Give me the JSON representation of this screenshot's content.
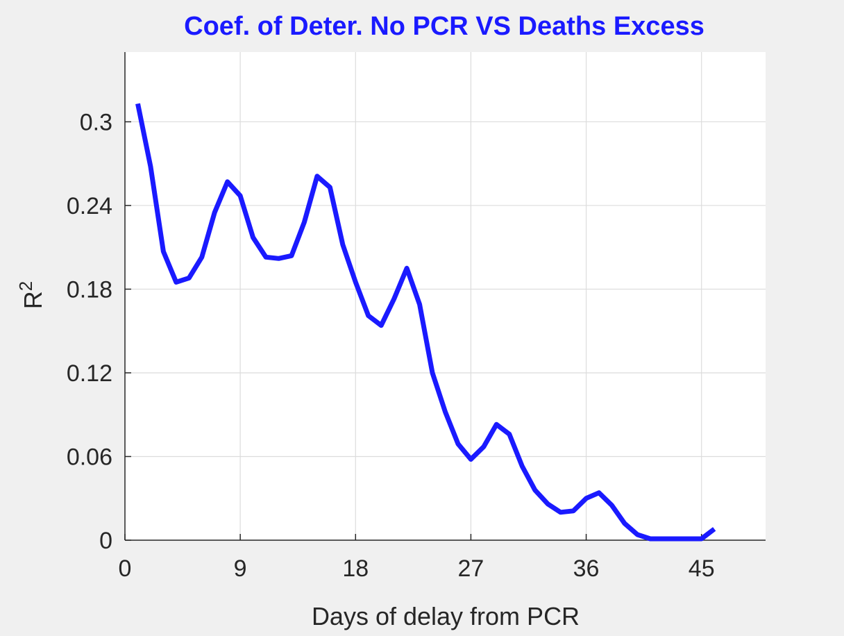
{
  "chart_data": {
    "type": "line",
    "title": "Coef. of Deter. No PCR VS Deaths Excess",
    "xlabel": "Days of delay from PCR",
    "ylabel_base": "R",
    "ylabel_sup": "2",
    "xlim": [
      0,
      50
    ],
    "ylim": [
      0,
      0.35
    ],
    "xticks": [
      0,
      9,
      18,
      27,
      36,
      45
    ],
    "xtick_labels": [
      "0",
      "9",
      "18",
      "27",
      "36",
      "45"
    ],
    "yticks": [
      0,
      0.06,
      0.12,
      0.18,
      0.24,
      0.3
    ],
    "ytick_labels": [
      "0",
      "0.06",
      "0.12",
      "0.18",
      "0.24",
      "0.3"
    ],
    "grid": true,
    "colors": {
      "line": "#1a1aff",
      "title": "#1a1aff",
      "background": "#f0f0f0",
      "plot_bg": "#ffffff"
    },
    "series": [
      {
        "x": [
          1,
          2,
          3,
          4,
          5,
          6,
          7,
          8,
          9,
          10,
          11,
          12,
          13,
          14,
          15,
          16,
          17,
          18,
          19,
          20,
          21,
          22,
          23,
          24,
          25,
          26,
          27,
          28,
          29,
          30,
          31,
          32,
          33,
          34,
          35,
          36,
          37,
          38,
          39,
          40,
          41,
          42,
          43,
          44,
          45,
          46
        ],
        "values": [
          0.313,
          0.268,
          0.207,
          0.185,
          0.188,
          0.203,
          0.235,
          0.257,
          0.247,
          0.217,
          0.203,
          0.202,
          0.204,
          0.228,
          0.261,
          0.253,
          0.212,
          0.185,
          0.161,
          0.154,
          0.173,
          0.195,
          0.169,
          0.12,
          0.092,
          0.069,
          0.058,
          0.067,
          0.083,
          0.076,
          0.053,
          0.036,
          0.026,
          0.02,
          0.021,
          0.03,
          0.034,
          0.025,
          0.012,
          0.004,
          0.001,
          0.001,
          0.001,
          0.001,
          0.001,
          0.008
        ]
      }
    ]
  }
}
